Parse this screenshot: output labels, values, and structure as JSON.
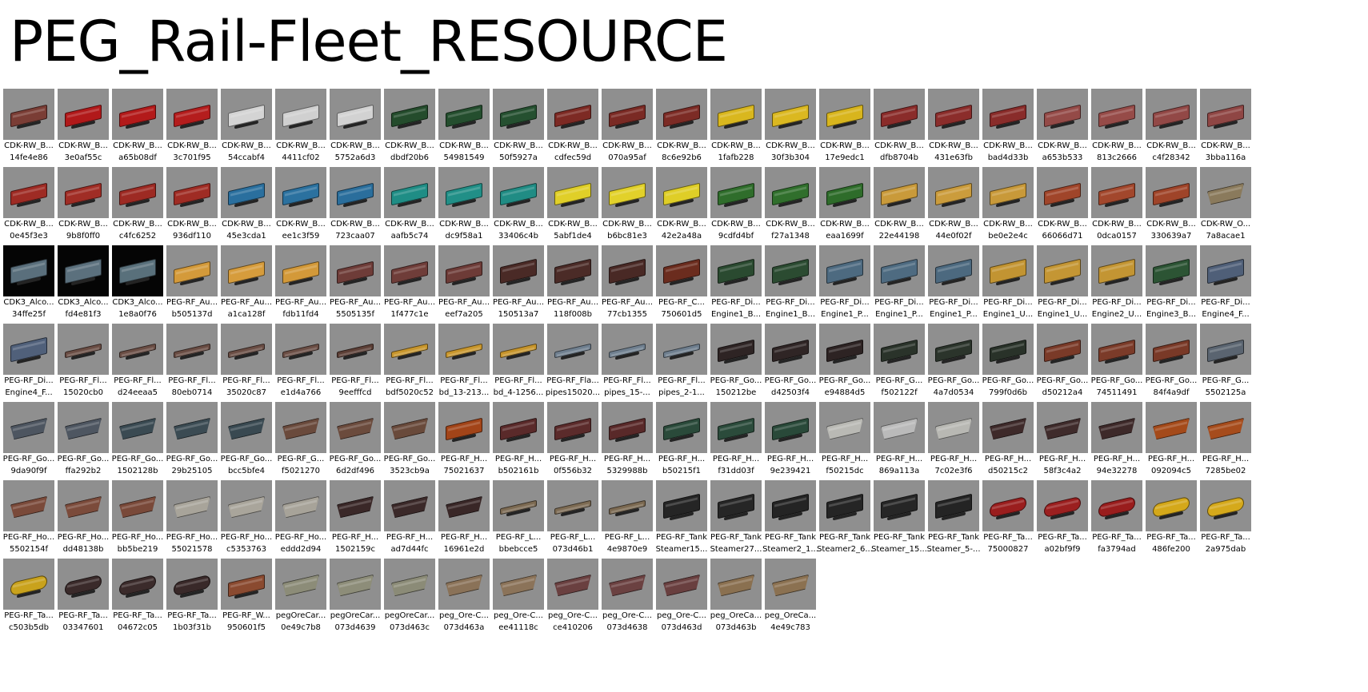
{
  "title": "PEG_Rail-Fleet_RESOURCE",
  "items": [
    {
      "name": "CDK-RW_B...",
      "id": "14fe4e86",
      "kind": "box",
      "color": "#7a3d35"
    },
    {
      "name": "CDK-RW_B...",
      "id": "3e0af55c",
      "kind": "box",
      "color": "#b1191a"
    },
    {
      "name": "CDK-RW_B...",
      "id": "a65b08df",
      "kind": "box",
      "color": "#b31a1a"
    },
    {
      "name": "CDK-RW_B...",
      "id": "3c701f95",
      "kind": "box",
      "color": "#b41d1d"
    },
    {
      "name": "CDK-RW_B...",
      "id": "54ccabf4",
      "kind": "box",
      "color": "#d4d4d4"
    },
    {
      "name": "CDK-RW_B...",
      "id": "4411cf02",
      "kind": "box",
      "color": "#d0d0d0"
    },
    {
      "name": "CDK-RW_B...",
      "id": "5752a6d3",
      "kind": "box",
      "color": "#d2d2d2"
    },
    {
      "name": "CDK-RW_B...",
      "id": "dbdf20b6",
      "kind": "box",
      "color": "#244c2c"
    },
    {
      "name": "CDK-RW_B...",
      "id": "54981549",
      "kind": "box",
      "color": "#244e2e"
    },
    {
      "name": "CDK-RW_B...",
      "id": "50f5927a",
      "kind": "box",
      "color": "#255030"
    },
    {
      "name": "CDK-RW_B...",
      "id": "cdfec59d",
      "kind": "box",
      "color": "#7d2a24"
    },
    {
      "name": "CDK-RW_B...",
      "id": "070a95af",
      "kind": "box",
      "color": "#7a2a24"
    },
    {
      "name": "CDK-RW_B...",
      "id": "8c6e92b6",
      "kind": "box",
      "color": "#7c2b25"
    },
    {
      "name": "CDK-RW_B...",
      "id": "1fafb228",
      "kind": "box",
      "color": "#d9b71e"
    },
    {
      "name": "CDK-RW_B...",
      "id": "30f3b304",
      "kind": "box",
      "color": "#dbb820"
    },
    {
      "name": "CDK-RW_B...",
      "id": "17e9edc1",
      "kind": "box",
      "color": "#d8b51d"
    },
    {
      "name": "CDK-RW_B...",
      "id": "dfb8704b",
      "kind": "box",
      "color": "#8a2c2a"
    },
    {
      "name": "CDK-RW_B...",
      "id": "431e63fb",
      "kind": "box",
      "color": "#8b2d2b"
    },
    {
      "name": "CDK-RW_B...",
      "id": "bad4d33b",
      "kind": "box",
      "color": "#892c2a"
    },
    {
      "name": "CDK-RW_B...",
      "id": "a653b533",
      "kind": "box",
      "color": "#944a47"
    },
    {
      "name": "CDK-RW_B...",
      "id": "813c2666",
      "kind": "box",
      "color": "#964b48"
    },
    {
      "name": "CDK-RW_B...",
      "id": "c4f28342",
      "kind": "box",
      "color": "#924846"
    },
    {
      "name": "CDK-RW_B...",
      "id": "3bba116a",
      "kind": "box",
      "color": "#8f4644"
    },
    {
      "name": "CDK-RW_B...",
      "id": "0e45f3e3",
      "kind": "box",
      "color": "#9e2b24"
    },
    {
      "name": "CDK-RW_B...",
      "id": "9b8f0ff0",
      "kind": "box",
      "color": "#a02d25"
    },
    {
      "name": "CDK-RW_B...",
      "id": "c4fc6252",
      "kind": "box",
      "color": "#9d2a23"
    },
    {
      "name": "CDK-RW_B...",
      "id": "936df110",
      "kind": "box",
      "color": "#9f2c24"
    },
    {
      "name": "CDK-RW_B...",
      "id": "45e3cda1",
      "kind": "box",
      "color": "#2a6f9e"
    },
    {
      "name": "CDK-RW_B...",
      "id": "ee1c3f59",
      "kind": "box",
      "color": "#2b719f"
    },
    {
      "name": "CDK-RW_B...",
      "id": "723caa07",
      "kind": "box",
      "color": "#2a6e9c"
    },
    {
      "name": "CDK-RW_B...",
      "id": "aafb5c74",
      "kind": "box",
      "color": "#1f8d85"
    },
    {
      "name": "CDK-RW_B...",
      "id": "dc9f58a1",
      "kind": "box",
      "color": "#218f87"
    },
    {
      "name": "CDK-RW_B...",
      "id": "33406c4b",
      "kind": "box",
      "color": "#208c84"
    },
    {
      "name": "CDK-RW_B...",
      "id": "5abf1de4",
      "kind": "box",
      "color": "#e0cf28"
    },
    {
      "name": "CDK-RW_B...",
      "id": "b6bc81e3",
      "kind": "box",
      "color": "#e2d12a"
    },
    {
      "name": "CDK-RW_B...",
      "id": "42e2a48a",
      "kind": "box",
      "color": "#dfce27"
    },
    {
      "name": "CDK-RW_B...",
      "id": "9cdfd4bf",
      "kind": "box",
      "color": "#2f6d2b"
    },
    {
      "name": "CDK-RW_B...",
      "id": "f27a1348",
      "kind": "box",
      "color": "#306f2c"
    },
    {
      "name": "CDK-RW_B...",
      "id": "eaa1699f",
      "kind": "box",
      "color": "#2e6c2a"
    },
    {
      "name": "CDK-RW_B...",
      "id": "22e44198",
      "kind": "box",
      "color": "#c99a3a"
    },
    {
      "name": "CDK-RW_B...",
      "id": "44e0f02f",
      "kind": "box",
      "color": "#cb9c3c"
    },
    {
      "name": "CDK-RW_B...",
      "id": "be0e2e4c",
      "kind": "box",
      "color": "#c89939"
    },
    {
      "name": "CDK-RW_B...",
      "id": "66066d71",
      "kind": "box",
      "color": "#a0452a"
    },
    {
      "name": "CDK-RW_B...",
      "id": "0dca0157",
      "kind": "box",
      "color": "#a2472c"
    },
    {
      "name": "CDK-RW_B...",
      "id": "330639a7",
      "kind": "box",
      "color": "#9f4429"
    },
    {
      "name": "CDK-RW_O...",
      "id": "7a8acae1",
      "kind": "hopper",
      "color": "#8a7a5c"
    },
    {
      "name": "CDK3_Alco...",
      "id": "34ffe25f",
      "kind": "loco",
      "color": "#5a6f7c",
      "dark": true
    },
    {
      "name": "CDK3_Alco...",
      "id": "fd4e81f3",
      "kind": "loco",
      "color": "#5b707d",
      "dark": true
    },
    {
      "name": "CDK3_Alco...",
      "id": "1e8a0f76",
      "kind": "loco",
      "color": "#59707b",
      "dark": true
    },
    {
      "name": "PEG-RF_Au...",
      "id": "b505137d",
      "kind": "box",
      "color": "#d49a3a"
    },
    {
      "name": "PEG-RF_Au...",
      "id": "a1ca128f",
      "kind": "box",
      "color": "#d69c3c"
    },
    {
      "name": "PEG-RF_Au...",
      "id": "fdb11fd4",
      "kind": "box",
      "color": "#d39939"
    },
    {
      "name": "PEG-RF_Au...",
      "id": "5505135f",
      "kind": "box",
      "color": "#6e3c38"
    },
    {
      "name": "PEG-RF_Au...",
      "id": "1f477c1e",
      "kind": "box",
      "color": "#6f3d39"
    },
    {
      "name": "PEG-RF_Au...",
      "id": "eef7a205",
      "kind": "box",
      "color": "#6d3b37"
    },
    {
      "name": "PEG-RF_Au...",
      "id": "150513a7",
      "kind": "loco",
      "color": "#4a2a26"
    },
    {
      "name": "PEG-RF_Au...",
      "id": "118f008b",
      "kind": "loco",
      "color": "#4b2b27"
    },
    {
      "name": "PEG-RF_Au...",
      "id": "77cb1355",
      "kind": "loco",
      "color": "#492925"
    },
    {
      "name": "PEG-RF_C...",
      "id": "750601d5",
      "kind": "loco",
      "color": "#6b2c1e"
    },
    {
      "name": "PEG-RF_Di...",
      "id": "Engine1_B...",
      "kind": "loco",
      "color": "#2a4a30"
    },
    {
      "name": "PEG-RF_Di...",
      "id": "Engine1_B...",
      "kind": "loco",
      "color": "#2b4b31"
    },
    {
      "name": "PEG-RF_Di...",
      "id": "Engine1_P...",
      "kind": "loco",
      "color": "#4d6a80"
    },
    {
      "name": "PEG-RF_Di...",
      "id": "Engine1_P...",
      "kind": "loco",
      "color": "#4e6b81"
    },
    {
      "name": "PEG-RF_Di...",
      "id": "Engine1_P...",
      "kind": "loco",
      "color": "#4c697f"
    },
    {
      "name": "PEG-RF_Di...",
      "id": "Engine1_U...",
      "kind": "loco",
      "color": "#c29432"
    },
    {
      "name": "PEG-RF_Di...",
      "id": "Engine1_U...",
      "kind": "loco",
      "color": "#c49634"
    },
    {
      "name": "PEG-RF_Di...",
      "id": "Engine2_U...",
      "kind": "loco",
      "color": "#c39533"
    },
    {
      "name": "PEG-RF_Di...",
      "id": "Engine3_B...",
      "kind": "loco",
      "color": "#2c5434"
    },
    {
      "name": "PEG-RF_Di...",
      "id": "Engine4_F...",
      "kind": "loco",
      "color": "#4f5f78"
    },
    {
      "name": "PEG-RF_Di...",
      "id": "Engine4_F...",
      "kind": "loco",
      "color": "#50607a"
    },
    {
      "name": "PEG-RF_Fl...",
      "id": "15020cb0",
      "kind": "flat",
      "color": "#6a4d44"
    },
    {
      "name": "PEG-RF_Fl...",
      "id": "d24eeaa5",
      "kind": "flat",
      "color": "#6b4e45"
    },
    {
      "name": "PEG-RF_Fl...",
      "id": "80eb0714",
      "kind": "flat",
      "color": "#694c43"
    },
    {
      "name": "PEG-RF_Fl...",
      "id": "35020c87",
      "kind": "flat",
      "color": "#6a4d44"
    },
    {
      "name": "PEG-RF_Fl...",
      "id": "e1d4a766",
      "kind": "flat",
      "color": "#6b4e45"
    },
    {
      "name": "PEG-RF_Fl...",
      "id": "9eefffcd",
      "kind": "flat",
      "color": "#5c3f36"
    },
    {
      "name": "PEG-RF_Fl...",
      "id": "bdf5020c52",
      "kind": "flat",
      "color": "#c8962c"
    },
    {
      "name": "PEG-RF_Fl...",
      "id": "bd_13-213...",
      "kind": "flat",
      "color": "#c9972d"
    },
    {
      "name": "PEG-RF_Fl...",
      "id": "bd_4-1256...",
      "kind": "flat",
      "color": "#c7952b"
    },
    {
      "name": "PEG-RF_Fla...",
      "id": "pipes15020...",
      "kind": "flat",
      "color": "#6f7f8f"
    },
    {
      "name": "PEG-RF_Fl...",
      "id": "pipes_15-...",
      "kind": "flat",
      "color": "#708090"
    },
    {
      "name": "PEG-RF_Fl...",
      "id": "pipes_2-1...",
      "kind": "flat",
      "color": "#6e7e8e"
    },
    {
      "name": "PEG-RF_Go...",
      "id": "150212be",
      "kind": "box",
      "color": "#2e2424"
    },
    {
      "name": "PEG-RF_Go...",
      "id": "d42503f4",
      "kind": "box",
      "color": "#2f2525"
    },
    {
      "name": "PEG-RF_Go...",
      "id": "e94884d5",
      "kind": "box",
      "color": "#2d2323"
    },
    {
      "name": "PEG-RF_G...",
      "id": "f502122f",
      "kind": "box",
      "color": "#2a332a"
    },
    {
      "name": "PEG-RF_Go...",
      "id": "4a7d0534",
      "kind": "box",
      "color": "#2b342b"
    },
    {
      "name": "PEG-RF_Go...",
      "id": "799f0d6b",
      "kind": "box",
      "color": "#293229"
    },
    {
      "name": "PEG-RF_Go...",
      "id": "d50212a4",
      "kind": "box",
      "color": "#7a3a28"
    },
    {
      "name": "PEG-RF_Go...",
      "id": "74511491",
      "kind": "box",
      "color": "#7b3b29"
    },
    {
      "name": "PEG-RF_Go...",
      "id": "84f4a9df",
      "kind": "box",
      "color": "#793927"
    },
    {
      "name": "PEG-RF_G...",
      "id": "5502125a",
      "kind": "box",
      "color": "#5a6470"
    },
    {
      "name": "PEG-RF_Go...",
      "id": "9da90f9f",
      "kind": "hopper",
      "color": "#4d5560"
    },
    {
      "name": "PEG-RF_Go...",
      "id": "ffa292b2",
      "kind": "hopper",
      "color": "#4e5661"
    },
    {
      "name": "PEG-RF_Go...",
      "id": "1502128b",
      "kind": "hopper",
      "color": "#3a4a52"
    },
    {
      "name": "PEG-RF_Go...",
      "id": "29b25105",
      "kind": "hopper",
      "color": "#3b4b53"
    },
    {
      "name": "PEG-RF_Go...",
      "id": "bcc5bfe4",
      "kind": "hopper",
      "color": "#394951"
    },
    {
      "name": "PEG-RF_G...",
      "id": "f5021270",
      "kind": "hopper",
      "color": "#6a4a3c"
    },
    {
      "name": "PEG-RF_Go...",
      "id": "6d2df496",
      "kind": "hopper",
      "color": "#6b4b3d"
    },
    {
      "name": "PEG-RF_Go...",
      "id": "3523cb9a",
      "kind": "hopper",
      "color": "#694a3b"
    },
    {
      "name": "PEG-RF_H...",
      "id": "75021637",
      "kind": "box",
      "color": "#a24418"
    },
    {
      "name": "PEG-RF_H...",
      "id": "b502161b",
      "kind": "box",
      "color": "#5a2a2a"
    },
    {
      "name": "PEG-RF_H...",
      "id": "0f556b32",
      "kind": "box",
      "color": "#5b2b2b"
    },
    {
      "name": "PEG-RF_H...",
      "id": "5329988b",
      "kind": "box",
      "color": "#592929"
    },
    {
      "name": "PEG-RF_H...",
      "id": "b50215f1",
      "kind": "box",
      "color": "#2a4a3a"
    },
    {
      "name": "PEG-RF_H...",
      "id": "f31dd03f",
      "kind": "box",
      "color": "#2b4b3b"
    },
    {
      "name": "PEG-RF_H...",
      "id": "9e239421",
      "kind": "box",
      "color": "#294939"
    },
    {
      "name": "PEG-RF_H...",
      "id": "f50215dc",
      "kind": "hopper",
      "color": "#b9b9b4"
    },
    {
      "name": "PEG-RF_H...",
      "id": "869a113a",
      "kind": "hopper",
      "color": "#bababa"
    },
    {
      "name": "PEG-RF_H...",
      "id": "7c02e3f6",
      "kind": "hopper",
      "color": "#b8b8b3"
    },
    {
      "name": "PEG-RF_H...",
      "id": "d50215c2",
      "kind": "hopper",
      "color": "#3e2a2a"
    },
    {
      "name": "PEG-RF_H...",
      "id": "58f3c4a2",
      "kind": "hopper",
      "color": "#3f2b2b"
    },
    {
      "name": "PEG-RF_H...",
      "id": "94e32278",
      "kind": "hopper",
      "color": "#3d2929"
    },
    {
      "name": "PEG-RF_H...",
      "id": "092094c5",
      "kind": "hopper",
      "color": "#a44a1a"
    },
    {
      "name": "PEG-RF_H...",
      "id": "7285be02",
      "kind": "hopper",
      "color": "#a64c1c"
    },
    {
      "name": "PEG-RF_Ho...",
      "id": "5502154f",
      "kind": "hopper",
      "color": "#7a4a3a"
    },
    {
      "name": "PEG-RF_Ho...",
      "id": "dd48138b",
      "kind": "hopper",
      "color": "#7b4b3b"
    },
    {
      "name": "PEG-RF_Ho...",
      "id": "bb5be219",
      "kind": "hopper",
      "color": "#794939"
    },
    {
      "name": "PEG-RF_Ho...",
      "id": "55021578",
      "kind": "hopper",
      "color": "#a8a49a"
    },
    {
      "name": "PEG-RF_Ho...",
      "id": "c5353763",
      "kind": "hopper",
      "color": "#a9a59b"
    },
    {
      "name": "PEG-RF_Ho...",
      "id": "eddd2d94",
      "kind": "hopper",
      "color": "#a7a399"
    },
    {
      "name": "PEG-RF_H...",
      "id": "1502159c",
      "kind": "hopper",
      "color": "#3a2828"
    },
    {
      "name": "PEG-RF_H...",
      "id": "ad7d44fc",
      "kind": "hopper",
      "color": "#3b2929"
    },
    {
      "name": "PEG-RF_H...",
      "id": "16961e2d",
      "kind": "hopper",
      "color": "#392727"
    },
    {
      "name": "PEG-RF_L...",
      "id": "bbebcce5",
      "kind": "flat",
      "color": "#7c6a52"
    },
    {
      "name": "PEG-RF_L...",
      "id": "073d46b1",
      "kind": "flat",
      "color": "#7d6b53"
    },
    {
      "name": "PEG-RF_L...",
      "id": "4e9870e9",
      "kind": "flat",
      "color": "#7b6951"
    },
    {
      "name": "PEG-RF_Tank",
      "id": "Steamer15...",
      "kind": "loco",
      "color": "#252525"
    },
    {
      "name": "PEG-RF_Tank",
      "id": "Steamer27...",
      "kind": "loco",
      "color": "#262626"
    },
    {
      "name": "PEG-RF_Tank",
      "id": "Steamer2_1...",
      "kind": "loco",
      "color": "#242424"
    },
    {
      "name": "PEG-RF_Tank",
      "id": "Steamer2_6...",
      "kind": "loco",
      "color": "#252525"
    },
    {
      "name": "PEG-RF_Tank",
      "id": "Steamer_15...",
      "kind": "loco",
      "color": "#262626"
    },
    {
      "name": "PEG-RF_Tank",
      "id": "Steamer_5-...",
      "kind": "loco",
      "color": "#242424"
    },
    {
      "name": "PEG-RF_Ta...",
      "id": "75000827",
      "kind": "tank",
      "color": "#9a1e1e"
    },
    {
      "name": "PEG-RF_Ta...",
      "id": "a02bf9f9",
      "kind": "tank",
      "color": "#9b1f1f"
    },
    {
      "name": "PEG-RF_Ta...",
      "id": "fa3794ad",
      "kind": "tank",
      "color": "#991d1d"
    },
    {
      "name": "PEG-RF_Ta...",
      "id": "486fe200",
      "kind": "tank",
      "color": "#d4a81a"
    },
    {
      "name": "PEG-RF_Ta...",
      "id": "2a975dab",
      "kind": "tank",
      "color": "#d5a91b"
    },
    {
      "name": "PEG-RF_Ta...",
      "id": "c503b5db",
      "kind": "tank",
      "color": "#c9a21c"
    },
    {
      "name": "PEG-RF_Ta...",
      "id": "03347601",
      "kind": "tank",
      "color": "#3a2a2a"
    },
    {
      "name": "PEG-RF_Ta...",
      "id": "04672c05",
      "kind": "tank",
      "color": "#3b2b2b"
    },
    {
      "name": "PEG-RF_Ta...",
      "id": "1b03f31b",
      "kind": "tank",
      "color": "#392929"
    },
    {
      "name": "PEG-RF_W...",
      "id": "950601f5",
      "kind": "box",
      "color": "#8a4a30"
    },
    {
      "name": "pegOreCar...",
      "id": "0e49c7b8",
      "kind": "hopper",
      "color": "#8c8c78"
    },
    {
      "name": "pegOreCar...",
      "id": "073d4639",
      "kind": "hopper",
      "color": "#8d8d79"
    },
    {
      "name": "pegOreCar...",
      "id": "073d463c",
      "kind": "hopper",
      "color": "#8b8b77"
    },
    {
      "name": "peg_Ore-C...",
      "id": "073d463a",
      "kind": "hopper",
      "color": "#8a7258"
    },
    {
      "name": "peg_Ore-C...",
      "id": "ee41118c",
      "kind": "hopper",
      "color": "#8b7359"
    },
    {
      "name": "peg_Ore-C...",
      "id": "ce410206",
      "kind": "hopper",
      "color": "#6a4040"
    },
    {
      "name": "peg_Ore-C...",
      "id": "073d4638",
      "kind": "hopper",
      "color": "#6b4141"
    },
    {
      "name": "peg_Ore-C...",
      "id": "073d463d",
      "kind": "hopper",
      "color": "#693f3f"
    },
    {
      "name": "peg_OreCa...",
      "id": "073d463b",
      "kind": "hopper",
      "color": "#8a7050"
    },
    {
      "name": "peg_OreCa...",
      "id": "4e49c783",
      "kind": "hopper",
      "color": "#8b7151"
    }
  ]
}
